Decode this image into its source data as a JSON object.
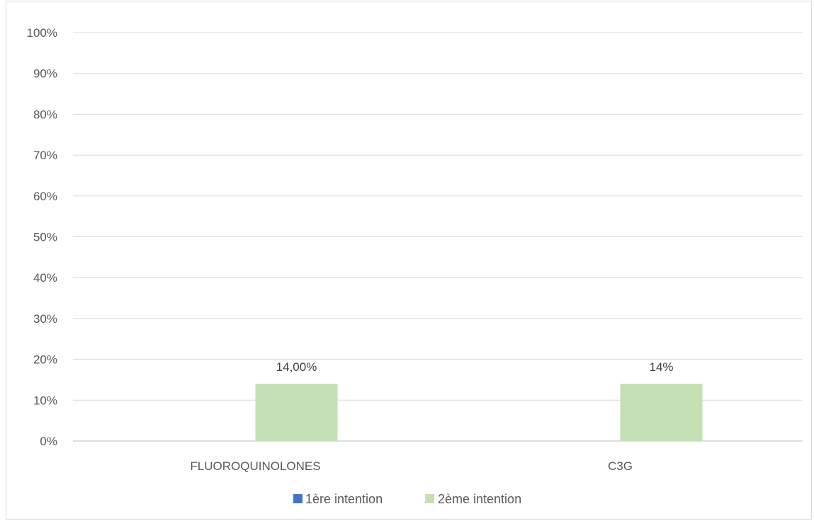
{
  "chart_data": {
    "type": "bar",
    "categories": [
      "FLUOROQUINOLONES",
      "C3G"
    ],
    "series": [
      {
        "name": "1ère intention",
        "values": [
          0,
          0
        ],
        "color": "#4472c4",
        "labels": [
          "",
          ""
        ]
      },
      {
        "name": "2ème intention",
        "values": [
          14,
          14
        ],
        "color": "#c5e0b4",
        "labels": [
          "14,00%",
          "14%"
        ]
      }
    ],
    "y_ticks": [
      "0%",
      "10%",
      "20%",
      "30%",
      "40%",
      "50%",
      "60%",
      "70%",
      "80%",
      "90%",
      "100%"
    ],
    "ylim": [
      0,
      100
    ],
    "grid": true,
    "legend_position": "bottom",
    "title": "",
    "xlabel": "",
    "ylabel": ""
  }
}
